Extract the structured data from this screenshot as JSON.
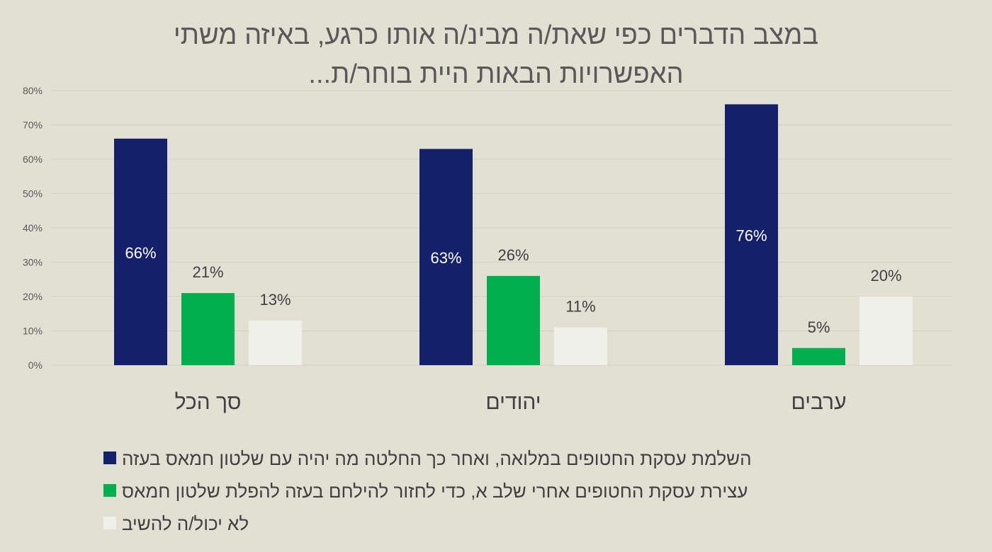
{
  "chart_data": {
    "type": "bar",
    "title_lines": [
      "במצב הדברים כפי שאת/ה מבינ/ה אותו כרגע, באיזה משתי",
      "האפשרויות הבאות היית בוחר/ת..."
    ],
    "categories": [
      "סך הכל",
      "יהודים",
      "ערבים"
    ],
    "series": [
      {
        "name": "השלמת עסקת החטופים במלואה, ואחר כך החלטה מה יהיה עם שלטון חמאס בעזה",
        "color": "#14206a",
        "values": [
          66,
          63,
          76
        ],
        "labels": [
          "66%",
          "63%",
          "76%"
        ]
      },
      {
        "name": "עצירת עסקת החטופים אחרי שלב א, כדי לחזור להילחם בעזה להפלת שלטון חמאס",
        "color": "#00b04f",
        "values": [
          21,
          26,
          5
        ],
        "labels": [
          "21%",
          "26%",
          "5%"
        ]
      },
      {
        "name": "לא יכול/ה להשיב",
        "color": "#f0f0ea",
        "values": [
          13,
          11,
          20
        ],
        "labels": [
          "13%",
          "11%",
          "20%"
        ]
      }
    ],
    "yticks": [
      "0%",
      "10%",
      "20%",
      "30%",
      "40%",
      "50%",
      "60%",
      "70%",
      "80%"
    ],
    "ylim": [
      0,
      80
    ],
    "grid": true,
    "legend_placement": "bottom",
    "background": "#e2dfd3"
  }
}
